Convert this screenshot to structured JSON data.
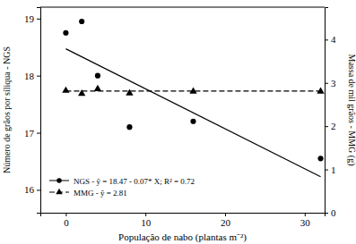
{
  "chart_data": {
    "type": "scatter",
    "x_label": "População de nabo (plantas m⁻²)",
    "y_label": "Número de grãos por síliqua - NGS",
    "y2_label": "Massa de mil grãos - MMG (g)",
    "x": [
      0,
      2,
      4,
      8,
      16,
      32
    ],
    "xlim": [
      -3.2,
      32.5
    ],
    "xticks": [
      0,
      10,
      20,
      30
    ],
    "ylim": [
      15.6,
      19.2
    ],
    "yticks": [
      16,
      17,
      18,
      19
    ],
    "y2lim": [
      0,
      4.75
    ],
    "y2ticks": [
      0,
      1,
      2,
      3,
      4
    ],
    "grid": false,
    "legend": "lower left",
    "series": [
      {
        "name": "NGS - ŷ = 18.47 - 0.07* X; R² = 0.72",
        "color": "#000000",
        "marker": "circle",
        "line_style": "solid",
        "values": [
          18.75,
          18.95,
          18.0,
          17.1,
          17.2,
          16.55
        ],
        "trend": {
          "x": [
            0,
            32
          ],
          "values": [
            18.47,
            16.23
          ]
        }
      },
      {
        "name": "MMG - ŷ = 2.81",
        "axis": "y2",
        "color": "#000000",
        "marker": "triangle",
        "line_style": "dashed",
        "values": [
          2.82,
          2.75,
          2.86,
          2.76,
          2.8,
          2.8
        ],
        "trend": {
          "x": [
            0,
            32
          ],
          "values": [
            2.81,
            2.81
          ]
        }
      }
    ]
  }
}
